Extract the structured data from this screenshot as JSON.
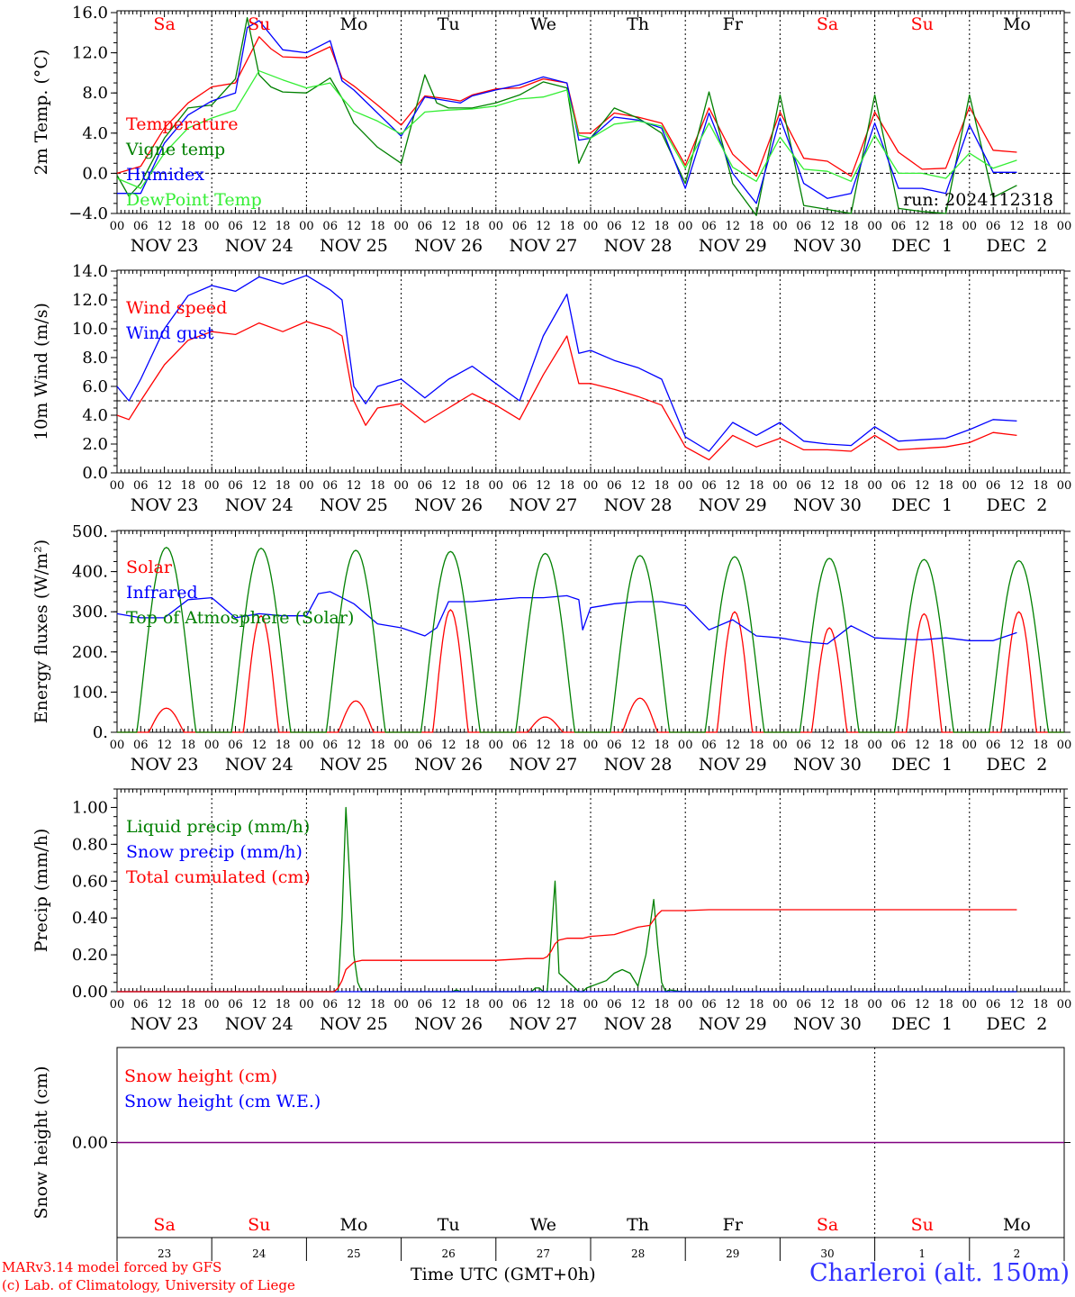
{
  "footer": {
    "credit_line1": "MARv3.14 model forced by GFS",
    "credit_line2": "(c) Lab. of Climatology, University of Liege",
    "xaxis_label": "Time UTC (GMT+0h)",
    "location": "Charleroi (alt. 150m)",
    "run_label": "run: 2024112318"
  },
  "colors": {
    "red": "#ff0000",
    "green": "#008000",
    "blue": "#0000ff",
    "lightgreen": "#33ee33",
    "purple": "#800080",
    "credit": "#ff0000",
    "location": "#3333ff"
  },
  "timeline": {
    "hour_ticks": [
      "00",
      "06",
      "12",
      "18"
    ],
    "days": [
      {
        "weekday": "Sa",
        "weekend": true,
        "date": "NOV 23",
        "short": "23"
      },
      {
        "weekday": "Su",
        "weekend": true,
        "date": "NOV 24",
        "short": "24"
      },
      {
        "weekday": "Mo",
        "weekend": false,
        "date": "NOV 25",
        "short": "25"
      },
      {
        "weekday": "Tu",
        "weekend": false,
        "date": "NOV 26",
        "short": "26"
      },
      {
        "weekday": "We",
        "weekend": false,
        "date": "NOV 27",
        "short": "27"
      },
      {
        "weekday": "Th",
        "weekend": false,
        "date": "NOV 28",
        "short": "28"
      },
      {
        "weekday": "Fr",
        "weekend": false,
        "date": "NOV 29",
        "short": "29"
      },
      {
        "weekday": "Sa",
        "weekend": true,
        "date": "NOV 30",
        "short": "30"
      },
      {
        "weekday": "Su",
        "weekend": true,
        "date": "DEC  1",
        "short": "1"
      },
      {
        "weekday": "Mo",
        "weekend": false,
        "date": "DEC  2",
        "short": "2"
      }
    ],
    "end_tick": "00"
  },
  "chart_data": [
    {
      "id": "temp",
      "type": "line",
      "ylabel": "2m Temp. (°C)",
      "ylim": [
        -4,
        16
      ],
      "yticks": [
        {
          "v": 16,
          "l": "16.0"
        },
        {
          "v": 12,
          "l": "12.0"
        },
        {
          "v": 8,
          "l": "8.0"
        },
        {
          "v": 4,
          "l": "4.0"
        },
        {
          "v": 0,
          "l": "0.0"
        },
        {
          "v": -4,
          "l": "−4.0"
        }
      ],
      "reference_line": 0,
      "x_unit": "hours since NOV 23 00 UTC",
      "series": [
        {
          "name": "Temperature",
          "color": "red",
          "x": [
            0,
            6,
            12,
            18,
            24,
            30,
            36,
            39,
            42,
            48,
            54,
            57,
            60,
            66,
            72,
            78,
            84,
            87,
            90,
            96,
            102,
            108,
            114,
            117,
            120,
            126,
            132,
            138,
            144,
            150,
            156,
            162,
            168,
            174,
            180,
            186,
            192,
            198,
            204,
            210,
            216,
            222,
            228
          ],
          "y": [
            0,
            0.7,
            4.5,
            7,
            8.6,
            9,
            13.6,
            12.4,
            11.6,
            11.5,
            12.6,
            9.5,
            8.7,
            6.8,
            4.8,
            7.7,
            7.4,
            7.2,
            7.8,
            8.4,
            8.5,
            9.4,
            9,
            4,
            4,
            6,
            5.6,
            5,
            0.8,
            6.5,
            1.9,
            -0.3,
            6.1,
            1.5,
            1.2,
            -0.3,
            6.1,
            2.1,
            0.4,
            0.5,
            6.6,
            2.3,
            2.1
          ]
        },
        {
          "name": "Vigne temp",
          "color": "green",
          "x": [
            0,
            3,
            6,
            12,
            18,
            24,
            30,
            33,
            36,
            39,
            42,
            48,
            54,
            57,
            60,
            66,
            72,
            78,
            81,
            84,
            90,
            96,
            102,
            108,
            114,
            117,
            120,
            126,
            132,
            138,
            144,
            150,
            156,
            162,
            168,
            174,
            180,
            186,
            192,
            198,
            204,
            210,
            216,
            222,
            228
          ],
          "y": [
            -0.2,
            -2.3,
            -1,
            3.5,
            6.5,
            6.8,
            9.4,
            15.5,
            9.8,
            8.6,
            8.1,
            8,
            9.5,
            7.5,
            5,
            2.6,
            1,
            9.8,
            7,
            6.5,
            6.5,
            7,
            7.8,
            9.1,
            8.5,
            1,
            3.5,
            6.5,
            5.5,
            4,
            -1,
            8.1,
            -1,
            -4.2,
            7.8,
            -3.2,
            -3.6,
            -4,
            7.8,
            -3.5,
            -3.8,
            -4,
            7.8,
            -2.4,
            -1.2
          ]
        },
        {
          "name": "Humidex",
          "color": "blue",
          "x": [
            0,
            6,
            12,
            18,
            24,
            30,
            33,
            36,
            42,
            48,
            54,
            57,
            60,
            66,
            72,
            78,
            84,
            87,
            90,
            96,
            102,
            108,
            114,
            117,
            120,
            126,
            132,
            138,
            144,
            150,
            156,
            162,
            168,
            174,
            180,
            186,
            192,
            198,
            204,
            210,
            216,
            222,
            228
          ],
          "y": [
            -2,
            -2,
            3,
            5.8,
            7.2,
            8,
            14.5,
            15.2,
            12.3,
            12,
            13.2,
            9.2,
            8.3,
            6,
            3.7,
            7.6,
            7.2,
            7,
            7.7,
            8.3,
            8.8,
            9.6,
            9,
            3.3,
            3.5,
            5.6,
            5.3,
            4.5,
            -1.5,
            6,
            0,
            -3,
            5.5,
            -1,
            -2.5,
            -2,
            5,
            -1.5,
            -1.5,
            -2,
            4.8,
            0.1,
            0.1
          ]
        },
        {
          "name": "DewPoint Temp",
          "color": "lightgreen",
          "x": [
            0,
            6,
            12,
            18,
            24,
            30,
            36,
            42,
            48,
            54,
            57,
            60,
            66,
            72,
            78,
            84,
            90,
            96,
            102,
            108,
            114,
            117,
            120,
            126,
            132,
            138,
            144,
            150,
            156,
            162,
            168,
            174,
            180,
            186,
            192,
            198,
            204,
            210,
            216,
            222,
            228
          ],
          "y": [
            -0.5,
            -1.5,
            2,
            4.5,
            5.5,
            6.3,
            10.2,
            9.3,
            8.5,
            9,
            7.5,
            6.2,
            5.2,
            3.9,
            6.1,
            6.3,
            6.4,
            6.7,
            7.4,
            7.6,
            8.3,
            3.8,
            3.5,
            4.9,
            5.2,
            4.7,
            0.5,
            5,
            0.6,
            -0.8,
            3.6,
            0.4,
            0.2,
            -0.8,
            3.8,
            0,
            0,
            -0.5,
            2,
            0.5,
            1.3
          ]
        }
      ]
    },
    {
      "id": "wind",
      "type": "line",
      "ylabel": "10m Wind (m/s)",
      "ylim": [
        0,
        14
      ],
      "yticks": [
        {
          "v": 14,
          "l": "14.0"
        },
        {
          "v": 12,
          "l": "12.0"
        },
        {
          "v": 10,
          "l": "10.0"
        },
        {
          "v": 8,
          "l": "8.0"
        },
        {
          "v": 6,
          "l": "6.0"
        },
        {
          "v": 4,
          "l": "4.0"
        },
        {
          "v": 2,
          "l": "2.0"
        },
        {
          "v": 0,
          "l": "0.0"
        }
      ],
      "reference_line": 5,
      "x_unit": "hours since NOV 23 00 UTC",
      "series": [
        {
          "name": "Wind speed",
          "color": "red",
          "x": [
            0,
            3,
            6,
            12,
            18,
            24,
            30,
            36,
            42,
            48,
            54,
            57,
            60,
            63,
            66,
            72,
            78,
            84,
            90,
            96,
            102,
            108,
            114,
            117,
            120,
            126,
            132,
            138,
            144,
            150,
            156,
            162,
            168,
            174,
            180,
            186,
            192,
            198,
            204,
            210,
            216,
            222,
            228
          ],
          "y": [
            4,
            3.7,
            5,
            7.5,
            9.2,
            9.8,
            9.6,
            10.4,
            9.8,
            10.5,
            10,
            9.5,
            5,
            3.3,
            4.5,
            4.8,
            3.5,
            4.5,
            5.5,
            4.7,
            3.7,
            6.8,
            9.5,
            6.2,
            6.2,
            5.8,
            5.3,
            4.7,
            1.8,
            0.9,
            2.6,
            1.8,
            2.4,
            1.6,
            1.6,
            1.5,
            2.6,
            1.6,
            1.7,
            1.8,
            2.1,
            2.8,
            2.6
          ]
        },
        {
          "name": "Wind gust",
          "color": "blue",
          "x": [
            0,
            3,
            6,
            12,
            18,
            24,
            30,
            36,
            42,
            48,
            54,
            57,
            60,
            63,
            66,
            72,
            78,
            84,
            90,
            96,
            102,
            108,
            114,
            117,
            120,
            126,
            132,
            138,
            144,
            150,
            156,
            162,
            168,
            174,
            180,
            186,
            192,
            198,
            204,
            210,
            216,
            222,
            228
          ],
          "y": [
            6,
            5,
            6.5,
            10,
            12.3,
            13,
            12.6,
            13.6,
            13.1,
            13.7,
            12.7,
            12,
            6,
            4.8,
            6,
            6.5,
            5.2,
            6.5,
            7.4,
            6.2,
            5,
            9.5,
            12.4,
            8.3,
            8.5,
            7.8,
            7.3,
            6.5,
            2.5,
            1.5,
            3.5,
            2.6,
            3.5,
            2.2,
            2,
            1.9,
            3.2,
            2.2,
            2.3,
            2.4,
            3,
            3.7,
            3.6
          ]
        }
      ]
    },
    {
      "id": "energy",
      "type": "line",
      "ylabel": "Energy fluxes (W/m²)",
      "ylim": [
        0,
        500
      ],
      "yticks": [
        {
          "v": 500,
          "l": "500."
        },
        {
          "v": 400,
          "l": "400."
        },
        {
          "v": 300,
          "l": "300."
        },
        {
          "v": 200,
          "l": "200."
        },
        {
          "v": 100,
          "l": "100."
        },
        {
          "v": 0,
          "l": "0."
        }
      ],
      "x_unit": "hours since NOV 23 00 UTC",
      "series": [
        {
          "name": "Solar",
          "color": "red",
          "daily_peak_hour": 12.5,
          "daily_halfwidth_hours": 4.5,
          "daily_peaks": [
            60,
            290,
            78,
            305,
            38,
            85,
            300,
            260,
            295,
            300
          ]
        },
        {
          "name": "Infrared",
          "color": "blue",
          "x": [
            0,
            6,
            12,
            18,
            24,
            30,
            36,
            42,
            48,
            51,
            54,
            60,
            66,
            72,
            78,
            81,
            84,
            90,
            96,
            102,
            108,
            114,
            117,
            118,
            120,
            126,
            132,
            138,
            144,
            150,
            156,
            162,
            168,
            174,
            180,
            186,
            192,
            198,
            204,
            210,
            216,
            222,
            228
          ],
          "y": [
            295,
            285,
            285,
            330,
            335,
            285,
            295,
            290,
            290,
            345,
            350,
            320,
            270,
            260,
            240,
            260,
            325,
            325,
            330,
            335,
            335,
            340,
            330,
            255,
            310,
            320,
            325,
            325,
            315,
            255,
            280,
            240,
            235,
            225,
            220,
            265,
            235,
            232,
            230,
            235,
            228,
            228,
            248
          ]
        },
        {
          "name": "Top of Atmosphere (Solar)",
          "color": "green",
          "daily_peak_hour": 12.5,
          "daily_halfwidth_hours": 7.5,
          "daily_peaks": [
            460,
            458,
            453,
            450,
            445,
            440,
            437,
            433,
            430,
            427
          ]
        }
      ]
    },
    {
      "id": "precip",
      "type": "line",
      "ylabel": "Precip (mm/h)",
      "ylim": [
        0,
        1.1
      ],
      "yticks": [
        {
          "v": 1.0,
          "l": "1.00"
        },
        {
          "v": 0.8,
          "l": "0.80"
        },
        {
          "v": 0.6,
          "l": "0.60"
        },
        {
          "v": 0.4,
          "l": "0.40"
        },
        {
          "v": 0.2,
          "l": "0.20"
        },
        {
          "v": 0,
          "l": "0.00"
        }
      ],
      "x_unit": "hours since NOV 23 00 UTC",
      "series": [
        {
          "name": "Liquid precip (mm/h)",
          "color": "green",
          "x": [
            0,
            56,
            57,
            58,
            59,
            60,
            61,
            62,
            85,
            86,
            87,
            105,
            106,
            107,
            108,
            109,
            110,
            111,
            112,
            116,
            117,
            118,
            119,
            124,
            126,
            128,
            130,
            132,
            134,
            136,
            137,
            138,
            139,
            140,
            143,
            228
          ],
          "y": [
            0,
            0,
            0.4,
            1.0,
            0.6,
            0.2,
            0.05,
            0,
            0,
            0.01,
            0,
            0,
            0.02,
            0.02,
            0,
            0,
            0.3,
            0.6,
            0.1,
            0.02,
            0,
            0,
            0.02,
            0.06,
            0.1,
            0.12,
            0.1,
            0.03,
            0.2,
            0.5,
            0.25,
            0.05,
            0,
            0.01,
            0,
            0
          ]
        },
        {
          "name": "Snow precip (mm/h)",
          "color": "blue",
          "x": [
            0,
            228
          ],
          "y": [
            0,
            0
          ]
        },
        {
          "name": "Total cumulated (cm)",
          "color": "red",
          "x": [
            0,
            55,
            56,
            57,
            58,
            60,
            62,
            72,
            84,
            96,
            104,
            108,
            109,
            110,
            111,
            112,
            114,
            118,
            120,
            126,
            129,
            132,
            135,
            136,
            137,
            138,
            140,
            144,
            150,
            160,
            228
          ],
          "y": [
            0,
            0,
            0.02,
            0.06,
            0.12,
            0.16,
            0.17,
            0.17,
            0.17,
            0.17,
            0.18,
            0.18,
            0.19,
            0.22,
            0.26,
            0.28,
            0.29,
            0.29,
            0.3,
            0.31,
            0.33,
            0.35,
            0.36,
            0.39,
            0.42,
            0.44,
            0.44,
            0.44,
            0.445,
            0.445,
            0.445
          ]
        }
      ]
    },
    {
      "id": "snow",
      "type": "line",
      "ylabel": "Snow height (cm)",
      "ylim": [
        -1,
        1
      ],
      "yticks": [
        {
          "v": 0,
          "l": "0.00"
        }
      ],
      "x_unit": "hours since NOV 23 00 UTC",
      "series": [
        {
          "name": "Snow height (cm)",
          "color": "red",
          "x": [
            0,
            228
          ],
          "y": [
            0,
            0
          ]
        },
        {
          "name": "Snow height (cm W.E.)",
          "color": "blue",
          "x": [
            0,
            228
          ],
          "y": [
            0,
            0
          ]
        }
      ]
    }
  ]
}
